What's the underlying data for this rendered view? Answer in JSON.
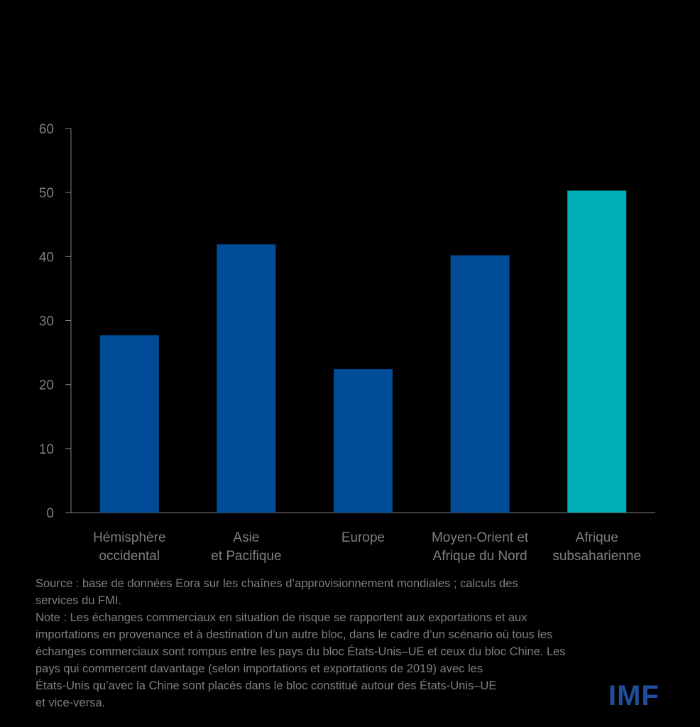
{
  "chart_data": {
    "type": "bar",
    "categories": [
      [
        "Hémisphère",
        "occidental"
      ],
      [
        "Asie",
        "et Pacifique"
      ],
      [
        "Europe"
      ],
      [
        "Moyen-Orient et",
        "Afrique du Nord"
      ],
      [
        "Afrique",
        "subsaharienne"
      ]
    ],
    "values": [
      27.7,
      41.9,
      22.4,
      40.2,
      50.3
    ],
    "bar_colors": [
      "#004c97",
      "#004c97",
      "#004c97",
      "#004c97",
      "#00aeb8"
    ],
    "ylim": [
      0,
      60
    ],
    "yticks": [
      "0",
      "10",
      "20",
      "30",
      "40",
      "50",
      "60"
    ],
    "grid": false
  },
  "notes": {
    "source": "Source : base de données Eora sur les chaînes d’approvisionnement mondiales ; calculs des\nservices du FMI.",
    "note": "Note : Les échanges commerciaux en situation de risque se rapportent aux exportations et aux\nimportations en provenance et à destination d’un autre bloc, dans le cadre d’un scénario où tous les\néchanges commerciaux sont rompus entre les pays du bloc États-Unis–UE et ceux du bloc Chine. Les\npays qui commercent davantage (selon importations et exportations de 2019) avec les\nÉtats-Unis qu’avec la Chine sont placés dans le bloc constitué autour des États-Unis–UE\net vice-versa."
  },
  "logo": {
    "text": "IMF"
  },
  "colors": {
    "axis": "#7f7f7f",
    "text": "#7f7f7f",
    "logo": "#1e4f9c"
  }
}
